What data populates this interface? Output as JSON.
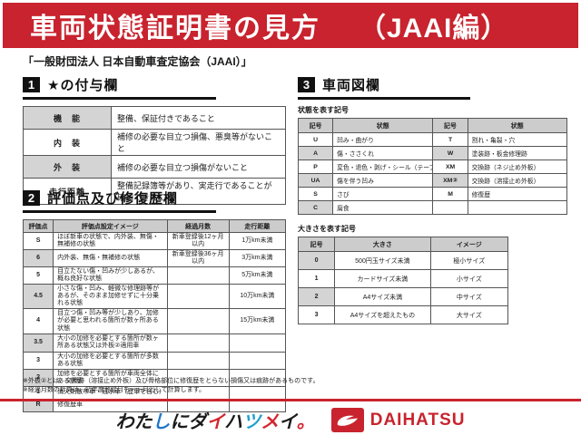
{
  "header": {
    "title": "車両状態証明書の見方",
    "edition": "（JAAI編）",
    "subtitle": "「一般財団法人 日本自動車査定協会（JAAI）」",
    "banner_color": "#c8232e"
  },
  "section1": {
    "number": "1",
    "title": "★の付与欄",
    "rows": [
      {
        "label": "機　能",
        "desc": "整備、保証付きであること"
      },
      {
        "label": "内　装",
        "desc": "補修の必要な目立つ損傷、悪臭等がないこと"
      },
      {
        "label": "外　装",
        "desc": "補修の必要な目立つ損傷がないこと"
      },
      {
        "label": "走行距離",
        "desc": "整備記録簿等があり、実走行であることが確認できること"
      }
    ]
  },
  "section2": {
    "number": "2",
    "title": "評価点及び修復歴欄",
    "headers": [
      "評価点",
      "評価点設定イメージ",
      "経過月数",
      "走行距離"
    ],
    "rows": [
      {
        "score": "S",
        "desc": "ほぼ新車の状態で、内外装、無傷・無補修の状態",
        "months": "新車登録後12ヶ月以内",
        "mileage": "1万km未満"
      },
      {
        "score": "6",
        "desc": "内外装、無傷・無補修の状態",
        "months": "新車登録後36ヶ月以内",
        "mileage": "3万km未満"
      },
      {
        "score": "5",
        "desc": "目立たない傷・凹みが少しあるが、概ね良好な状態",
        "months": "",
        "mileage": "5万km未満"
      },
      {
        "score": "4.5",
        "desc": "小さな傷・凹み、軽微な修理跡等があるが、そのまま加修せずに十分乗れる状態",
        "months": "",
        "mileage": "10万km未満"
      },
      {
        "score": "4",
        "desc": "目立つ傷・凹み等が少しあり、加修が必要と思われる箇所が数ヶ所ある状態",
        "months": "",
        "mileage": "15万km未満"
      },
      {
        "score": "3.5",
        "desc": "大小の加修を必要とする箇所が数ヶ所ある状態又は外板②適用車",
        "months": "",
        "mileage": ""
      },
      {
        "score": "3",
        "desc": "大小の加修を必要とする箇所が多数ある状態",
        "months": "",
        "mileage": ""
      },
      {
        "score": "2",
        "desc": "加修を必要とする箇所が車両全体にある状態",
        "months": "",
        "mileage": ""
      },
      {
        "score": "1",
        "desc": "消火剤散布車・冠水車（歴車を含む）",
        "months": "",
        "mileage": ""
      },
      {
        "score": "R",
        "desc": "修復歴車",
        "months": "",
        "mileage": ""
      }
    ]
  },
  "section3": {
    "number": "3",
    "title": "車両図欄",
    "condition_table": {
      "caption": "状態を表す記号",
      "headers": [
        "記号",
        "状態",
        "記号",
        "状態"
      ],
      "rows": [
        {
          "sym1": "U",
          "state1": "凹み・曲がり",
          "sym2": "T",
          "state2": "割れ・亀裂・穴"
        },
        {
          "sym1": "A",
          "state1": "傷・ささくれ",
          "sym2": "W",
          "state2": "塗装跡・板金修理跡"
        },
        {
          "sym1": "P",
          "state1": "変色・退色・剥げ・シール（テープ）跡",
          "sym2": "XM",
          "state2": "交換跡（ネジ止め外板）"
        },
        {
          "sym1": "UA",
          "state1": "傷を伴う凹み",
          "sym2": "XM②",
          "state2": "交換跡（溶接止め外板）"
        },
        {
          "sym1": "S",
          "state1": "さび",
          "sym2": "M",
          "state2": "修復歴"
        },
        {
          "sym1": "C",
          "state1": "腐食",
          "sym2": "",
          "state2": ""
        }
      ]
    },
    "size_table": {
      "caption": "大きさを表す記号",
      "headers": [
        "記号",
        "大きさ",
        "イメージ"
      ],
      "rows": [
        {
          "sym": "0",
          "size": "500円玉サイズ未満",
          "image": "極小サイズ"
        },
        {
          "sym": "1",
          "size": "カードサイズ未満",
          "image": "小サイズ"
        },
        {
          "sym": "2",
          "size": "A4サイズ未満",
          "image": "中サイズ"
        },
        {
          "sym": "3",
          "size": "A4サイズを超えたもの",
          "image": "大サイズ"
        }
      ]
    }
  },
  "footnotes": {
    "line1": "※外板②とは、交換跡（溶接止め外板）及び骨格部位に修復歴をとらない損傷又は痕跡があるものです。",
    "line2": "※経過月数の計算は、初年度登録月を一ヶ月として計算します。"
  },
  "footer": {
    "slogan": "わたしにダイハツメイ。",
    "slogan_chars": [
      {
        "ch": "わ",
        "color": "#1a1a1a"
      },
      {
        "ch": "た",
        "color": "#1a1a1a"
      },
      {
        "ch": "し",
        "color": "#2277cc"
      },
      {
        "ch": "に",
        "color": "#1a1a1a"
      },
      {
        "ch": "ダ",
        "color": "#1a1a1a"
      },
      {
        "ch": "イ",
        "color": "#d6252e"
      },
      {
        "ch": "ハ",
        "color": "#1a1a1a"
      },
      {
        "ch": "ツ",
        "color": "#22a0cc"
      },
      {
        "ch": "メ",
        "color": "#d6252e"
      },
      {
        "ch": "イ",
        "color": "#1a1a1a"
      },
      {
        "ch": "。",
        "color": "#d6252e"
      }
    ],
    "brand": "DAIHATSU",
    "brand_color": "#c8232e"
  }
}
